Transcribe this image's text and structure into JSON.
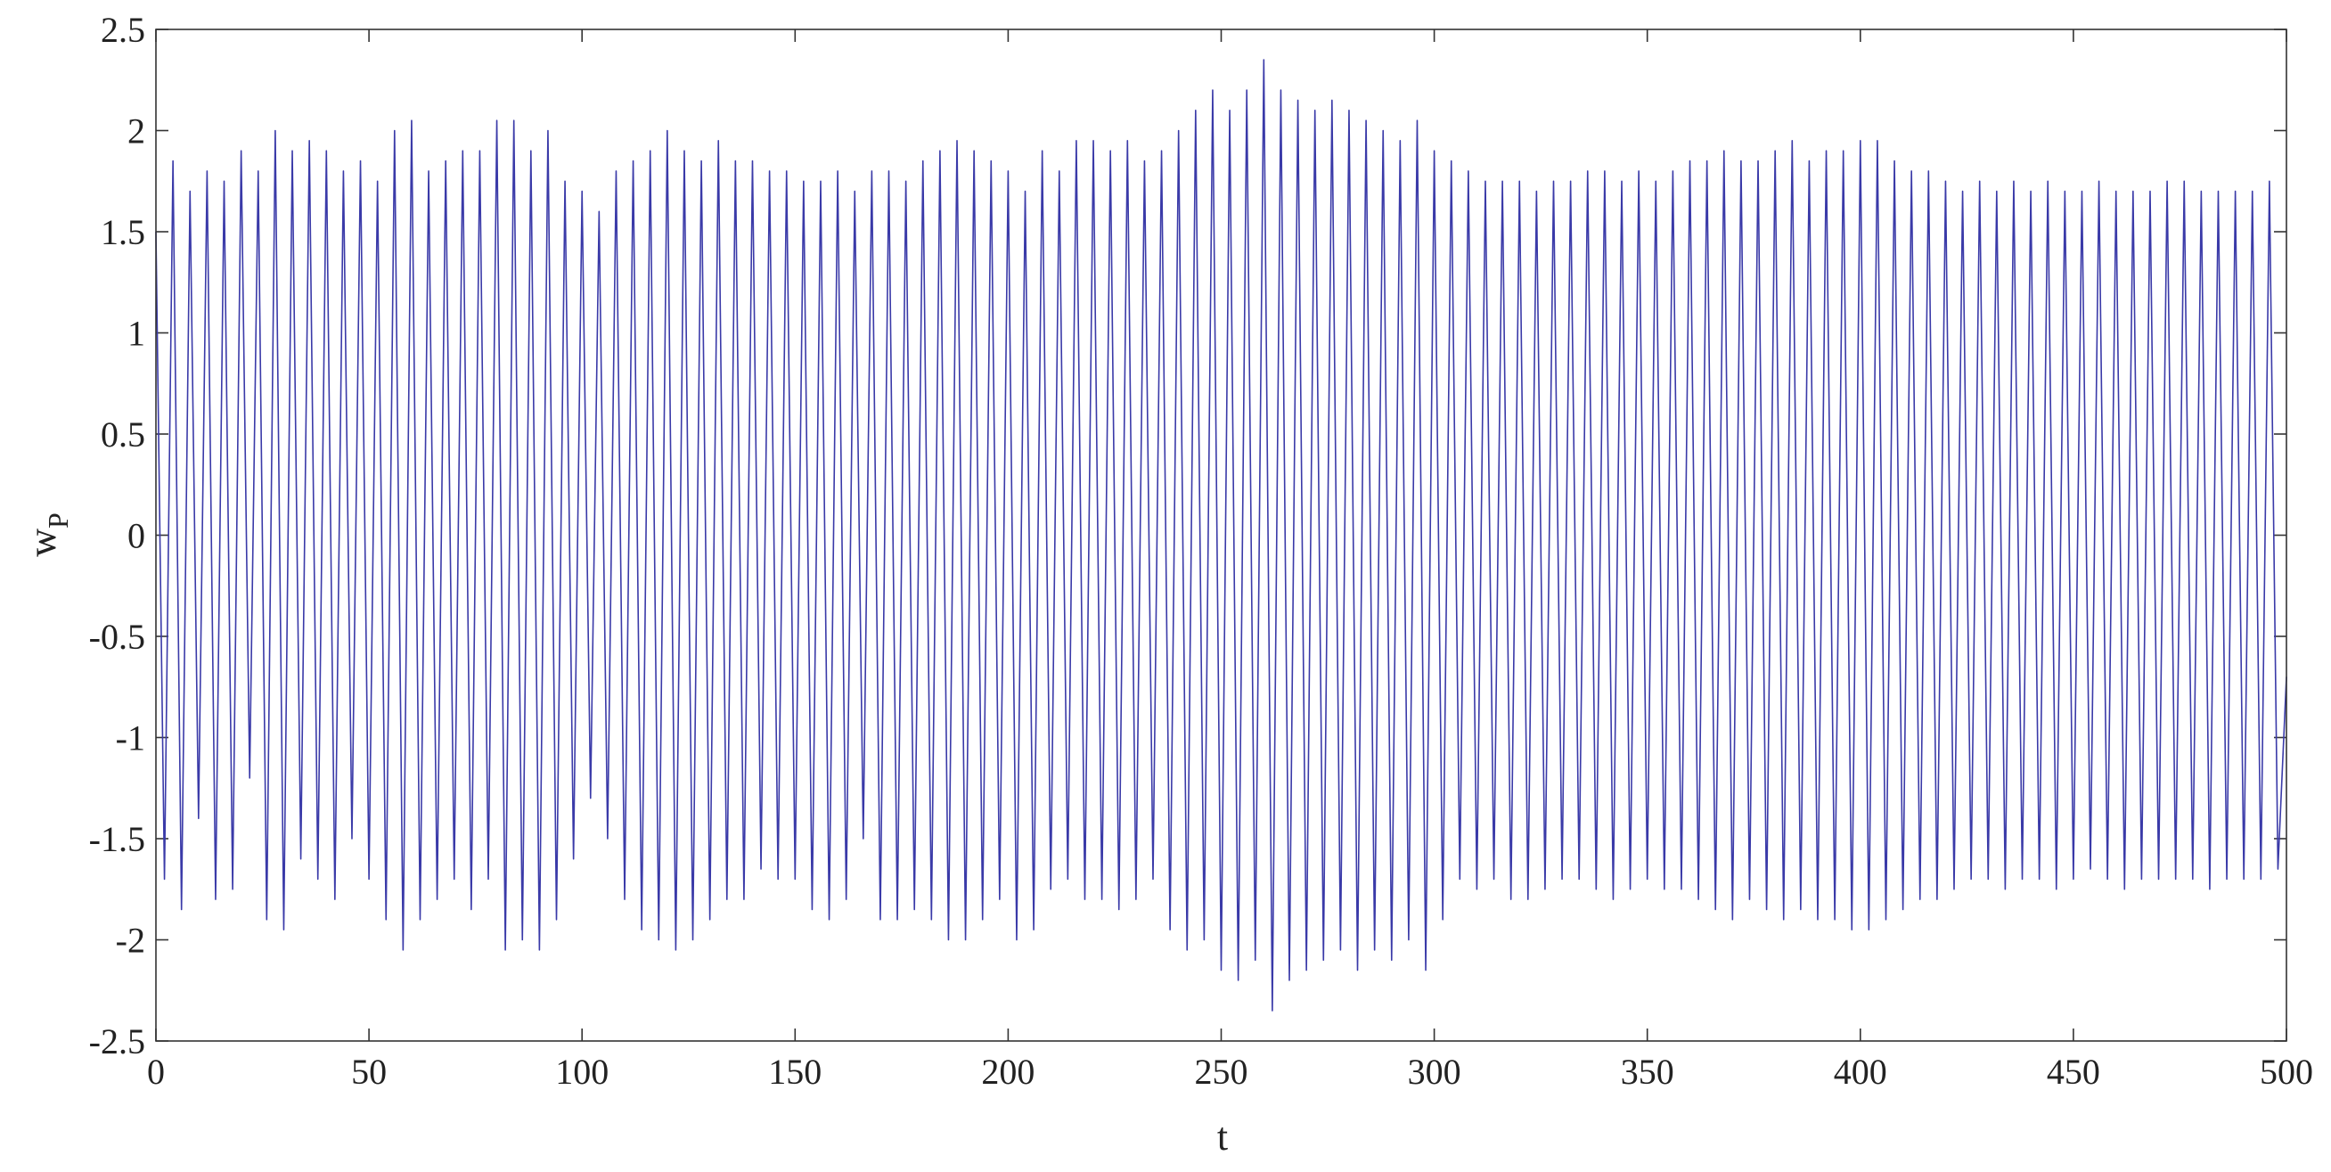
{
  "chart_data": {
    "type": "line",
    "xlabel": "t",
    "ylabel": "w",
    "ylabel_subscript": "P",
    "color": "#3a3aa8",
    "xlim": [
      0,
      500
    ],
    "ylim": [
      -2.5,
      2.5
    ],
    "xticks": [
      0,
      50,
      100,
      150,
      200,
      250,
      300,
      350,
      400,
      450,
      500
    ],
    "yticks": [
      -2.5,
      -2,
      -1.5,
      -1,
      -0.5,
      0,
      0.5,
      1,
      1.5,
      2,
      2.5
    ],
    "grid": false,
    "x": [
      0,
      2,
      4,
      6,
      8,
      10,
      12,
      14,
      16,
      18,
      20,
      22,
      24,
      26,
      28,
      30,
      32,
      34,
      36,
      38,
      40,
      42,
      44,
      46,
      48,
      50,
      52,
      54,
      56,
      58,
      60,
      62,
      64,
      66,
      68,
      70,
      72,
      74,
      76,
      78,
      80,
      82,
      84,
      86,
      88,
      90,
      92,
      94,
      96,
      98,
      100,
      102,
      104,
      106,
      108,
      110,
      112,
      114,
      116,
      118,
      120,
      122,
      124,
      126,
      128,
      130,
      132,
      134,
      136,
      138,
      140,
      142,
      144,
      146,
      148,
      150,
      152,
      154,
      156,
      158,
      160,
      162,
      164,
      166,
      168,
      170,
      172,
      174,
      176,
      178,
      180,
      182,
      184,
      186,
      188,
      190,
      192,
      194,
      196,
      198,
      200,
      202,
      204,
      206,
      208,
      210,
      212,
      214,
      216,
      218,
      220,
      222,
      224,
      226,
      228,
      230,
      232,
      234,
      236,
      238,
      240,
      242,
      244,
      246,
      248,
      250,
      252,
      254,
      256,
      258,
      260,
      262,
      264,
      266,
      268,
      270,
      272,
      274,
      276,
      278,
      280,
      282,
      284,
      286,
      288,
      290,
      292,
      294,
      296,
      298,
      300,
      302,
      304,
      306,
      308,
      310,
      312,
      314,
      316,
      318,
      320,
      322,
      324,
      326,
      328,
      330,
      332,
      334,
      336,
      338,
      340,
      342,
      344,
      346,
      348,
      350,
      352,
      354,
      356,
      358,
      360,
      362,
      364,
      366,
      368,
      370,
      372,
      374,
      376,
      378,
      380,
      382,
      384,
      386,
      388,
      390,
      392,
      394,
      396,
      398,
      400,
      402,
      404,
      406,
      408,
      410,
      412,
      414,
      416,
      418,
      420,
      422,
      424,
      426,
      428,
      430,
      432,
      434,
      436,
      438,
      440,
      442,
      444,
      446,
      448,
      450,
      452,
      454,
      456,
      458,
      460,
      462,
      464,
      466,
      468,
      470,
      472,
      474,
      476,
      478,
      480,
      482,
      484,
      486,
      488,
      490,
      492,
      494,
      496,
      498,
      500
    ],
    "values": [
      1.5,
      -1.7,
      1.85,
      -1.85,
      1.7,
      -1.4,
      1.8,
      -1.8,
      1.75,
      -1.75,
      1.9,
      -1.2,
      1.8,
      -1.9,
      2.0,
      -1.95,
      1.9,
      -1.6,
      1.95,
      -1.7,
      1.9,
      -1.8,
      1.8,
      -1.5,
      1.85,
      -1.7,
      1.75,
      -1.9,
      2.0,
      -2.05,
      2.05,
      -1.9,
      1.8,
      -1.8,
      1.85,
      -1.7,
      1.9,
      -1.85,
      1.9,
      -1.7,
      2.05,
      -2.05,
      2.05,
      -2.0,
      1.9,
      -2.05,
      2.0,
      -1.9,
      1.75,
      -1.6,
      1.7,
      -1.3,
      1.6,
      -1.5,
      1.8,
      -1.8,
      1.85,
      -1.95,
      1.9,
      -2.0,
      2.0,
      -2.05,
      1.9,
      -2.0,
      1.85,
      -1.9,
      1.95,
      -1.8,
      1.85,
      -1.8,
      1.85,
      -1.65,
      1.8,
      -1.7,
      1.8,
      -1.7,
      1.75,
      -1.85,
      1.75,
      -1.9,
      1.8,
      -1.8,
      1.7,
      -1.5,
      1.8,
      -1.9,
      1.8,
      -1.9,
      1.75,
      -1.85,
      1.85,
      -1.9,
      1.9,
      -2.0,
      1.95,
      -2.0,
      1.9,
      -1.9,
      1.85,
      -1.8,
      1.8,
      -2.0,
      1.7,
      -1.95,
      1.9,
      -1.75,
      1.8,
      -1.7,
      1.95,
      -1.8,
      1.95,
      -1.8,
      1.9,
      -1.85,
      1.95,
      -1.8,
      1.85,
      -1.7,
      1.9,
      -1.95,
      2.0,
      -2.05,
      2.1,
      -2.0,
      2.2,
      -2.15,
      2.1,
      -2.2,
      2.2,
      -2.1,
      2.35,
      -2.35,
      2.2,
      -2.2,
      2.15,
      -2.15,
      2.1,
      -2.1,
      2.15,
      -2.05,
      2.1,
      -2.15,
      2.05,
      -2.05,
      2.0,
      -2.1,
      1.95,
      -2.0,
      2.05,
      -2.15,
      1.9,
      -1.9,
      1.85,
      -1.7,
      1.8,
      -1.75,
      1.75,
      -1.7,
      1.75,
      -1.8,
      1.75,
      -1.8,
      1.7,
      -1.75,
      1.75,
      -1.7,
      1.75,
      -1.7,
      1.8,
      -1.75,
      1.8,
      -1.8,
      1.75,
      -1.75,
      1.8,
      -1.7,
      1.75,
      -1.75,
      1.8,
      -1.75,
      1.85,
      -1.8,
      1.85,
      -1.85,
      1.9,
      -1.9,
      1.85,
      -1.8,
      1.85,
      -1.85,
      1.9,
      -1.9,
      1.95,
      -1.85,
      1.85,
      -1.9,
      1.9,
      -1.9,
      1.9,
      -1.95,
      1.95,
      -1.95,
      1.95,
      -1.9,
      1.85,
      -1.85,
      1.8,
      -1.8,
      1.8,
      -1.8,
      1.75,
      -1.75,
      1.7,
      -1.7,
      1.75,
      -1.7,
      1.7,
      -1.75,
      1.75,
      -1.7,
      1.7,
      -1.7,
      1.75,
      -1.75,
      1.7,
      -1.7,
      1.7,
      -1.65,
      1.75,
      -1.7,
      1.7,
      -1.75,
      1.7,
      -1.7,
      1.7,
      -1.7,
      1.75,
      -1.7,
      1.75,
      -1.7,
      1.7,
      -1.75,
      1.7,
      -1.7,
      1.7,
      -1.7,
      1.7,
      -1.7,
      1.75,
      -1.65,
      -0.7
    ]
  }
}
